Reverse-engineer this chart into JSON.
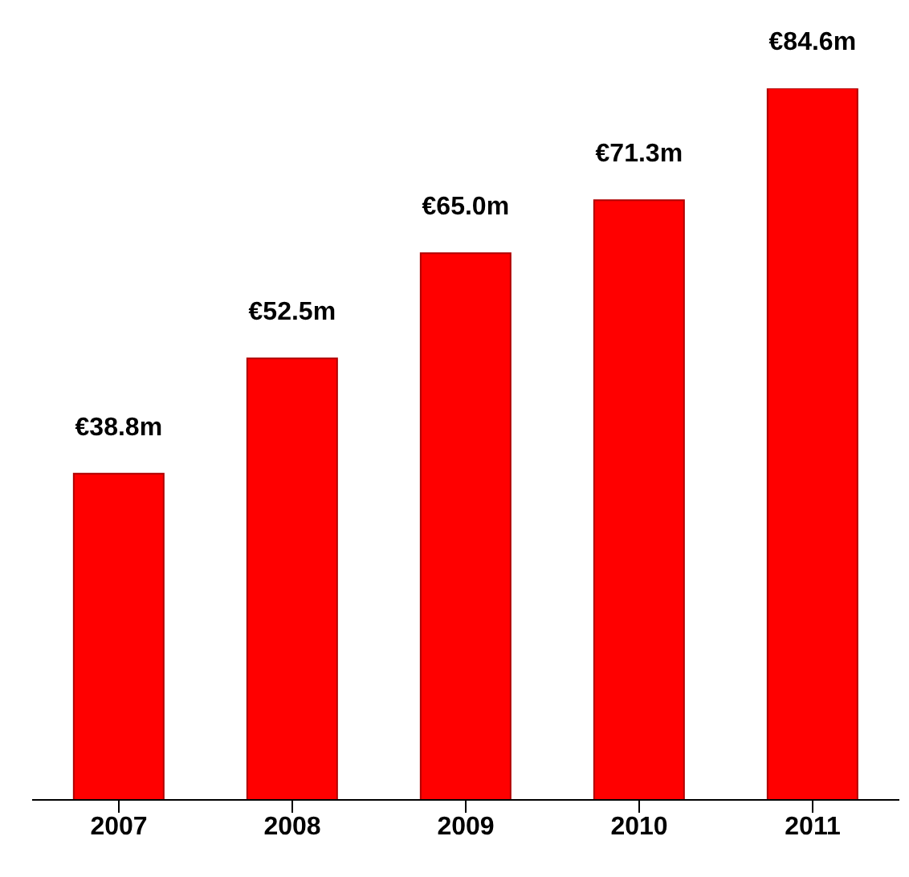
{
  "chart_data": {
    "type": "bar",
    "categories": [
      "2007",
      "2008",
      "2009",
      "2010",
      "2011"
    ],
    "values": [
      38.8,
      52.5,
      65.0,
      71.3,
      84.6
    ],
    "value_labels": [
      "€38.8m",
      "€52.5m",
      "€65.0m",
      "€71.3m",
      "€84.6m"
    ],
    "color": "#ff0000",
    "grid": false,
    "legend": false
  }
}
